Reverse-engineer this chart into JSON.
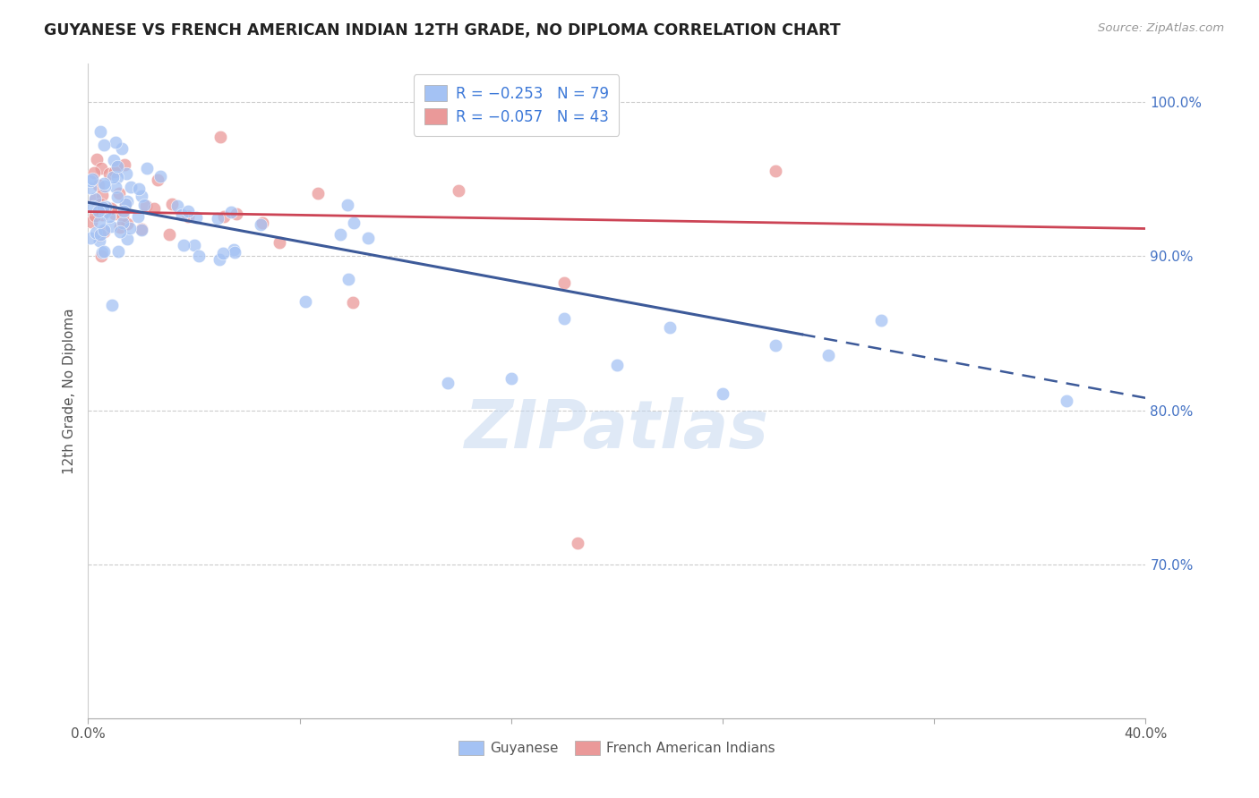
{
  "title": "GUYANESE VS FRENCH AMERICAN INDIAN 12TH GRADE, NO DIPLOMA CORRELATION CHART",
  "source": "Source: ZipAtlas.com",
  "ylabel": "12th Grade, No Diploma",
  "xlim": [
    0.0,
    0.4
  ],
  "ylim": [
    0.6,
    1.025
  ],
  "yticks": [
    0.7,
    0.8,
    0.9,
    1.0
  ],
  "ytick_labels": [
    "70.0%",
    "80.0%",
    "90.0%",
    "100.0%"
  ],
  "xticks": [
    0.0,
    0.08,
    0.16,
    0.24,
    0.32,
    0.4
  ],
  "xtick_labels": [
    "0.0%",
    "",
    "",
    "",
    "",
    "40.0%"
  ],
  "legend1_label": "R = −0.253   N = 79",
  "legend2_label": "R = −0.057   N = 43",
  "blue_color": "#a4c2f4",
  "pink_color": "#ea9999",
  "trend_blue": "#3d5a99",
  "trend_pink": "#cc4455",
  "watermark": "ZIPatlas",
  "blue_R": -0.253,
  "blue_N": 79,
  "pink_R": -0.057,
  "pink_N": 43,
  "trend_blue_x0": 0.0,
  "trend_blue_y0": 0.935,
  "trend_blue_x1": 0.4,
  "trend_blue_y1": 0.808,
  "trend_blue_solid_end": 0.27,
  "trend_pink_x0": 0.0,
  "trend_pink_y0": 0.929,
  "trend_pink_x1": 0.4,
  "trend_pink_y1": 0.918
}
